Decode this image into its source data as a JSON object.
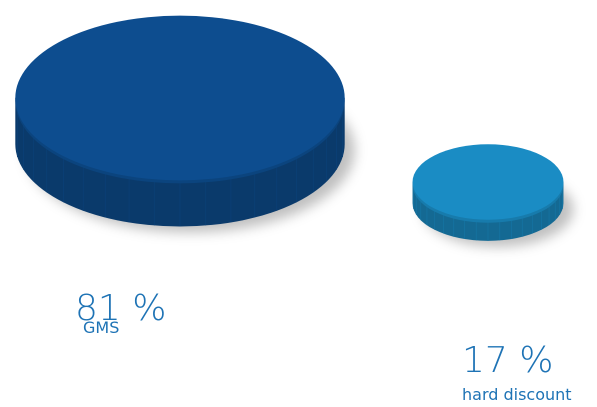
{
  "chart_data": {
    "type": "disc",
    "categories": [
      "GMS",
      "hard discount"
    ],
    "values": [
      81,
      17
    ],
    "value_labels": [
      "81 %",
      "17 %"
    ],
    "colors": [
      "#0d4d8f",
      "#1a8cc4"
    ]
  }
}
